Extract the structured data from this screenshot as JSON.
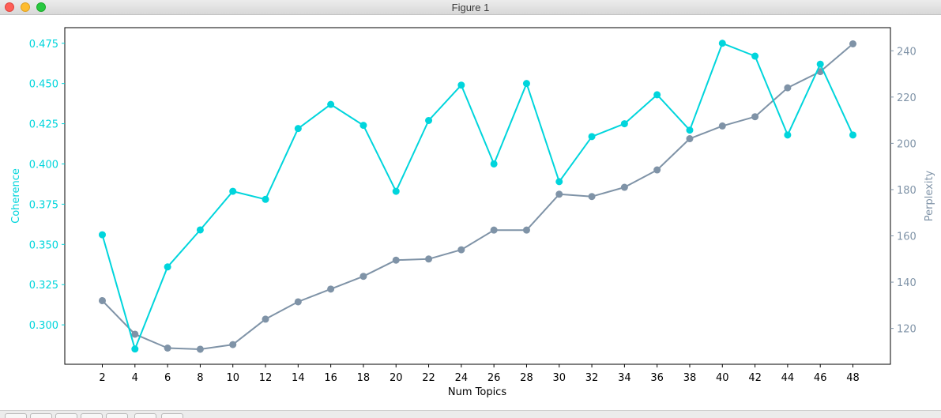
{
  "window": {
    "title": "Figure 1"
  },
  "colors": {
    "coherence": "#00d5dc",
    "perplexity": "#7f93a7",
    "axis": "#000000"
  },
  "chart_data": {
    "type": "line",
    "title": "",
    "xlabel": "Num Topics",
    "ylabel_left": "Coherence",
    "ylabel_right": "Perplexity",
    "grid": false,
    "x": [
      2,
      4,
      6,
      8,
      10,
      12,
      14,
      16,
      18,
      20,
      22,
      24,
      26,
      28,
      30,
      32,
      34,
      36,
      38,
      40,
      42,
      44,
      46,
      48
    ],
    "xticks": [
      2,
      4,
      6,
      8,
      10,
      12,
      14,
      16,
      18,
      20,
      22,
      24,
      26,
      28,
      30,
      32,
      34,
      36,
      38,
      40,
      42,
      44,
      46,
      48
    ],
    "xlim": [
      -0.3,
      50.3
    ],
    "left_axis": {
      "ylim": [
        0.2755,
        0.4847
      ],
      "ticks": [
        "0.300",
        "0.325",
        "0.350",
        "0.375",
        "0.400",
        "0.425",
        "0.450",
        "0.475"
      ],
      "tick_values": [
        0.3,
        0.325,
        0.35,
        0.375,
        0.4,
        0.425,
        0.45,
        0.475
      ]
    },
    "right_axis": {
      "ylim": [
        104.5,
        250.0
      ],
      "ticks": [
        "120",
        "140",
        "160",
        "180",
        "200",
        "220",
        "240"
      ],
      "tick_values": [
        120,
        140,
        160,
        180,
        200,
        220,
        240
      ]
    },
    "series": [
      {
        "axis": "left",
        "values": [
          0.356,
          0.285,
          0.336,
          0.359,
          0.383,
          0.378,
          0.422,
          0.437,
          0.424,
          0.383,
          0.427,
          0.449,
          0.4,
          0.45,
          0.389,
          0.417,
          0.425,
          0.443,
          0.421,
          0.475,
          0.467,
          0.418,
          0.462,
          0.418
        ]
      },
      {
        "axis": "right",
        "values": [
          132,
          117.5,
          111.5,
          111,
          113,
          124,
          131.5,
          137,
          142.5,
          149.5,
          150,
          154,
          162.5,
          162.5,
          178,
          177,
          181,
          188.5,
          202,
          207.5,
          211.5,
          224,
          231,
          243
        ]
      }
    ]
  }
}
